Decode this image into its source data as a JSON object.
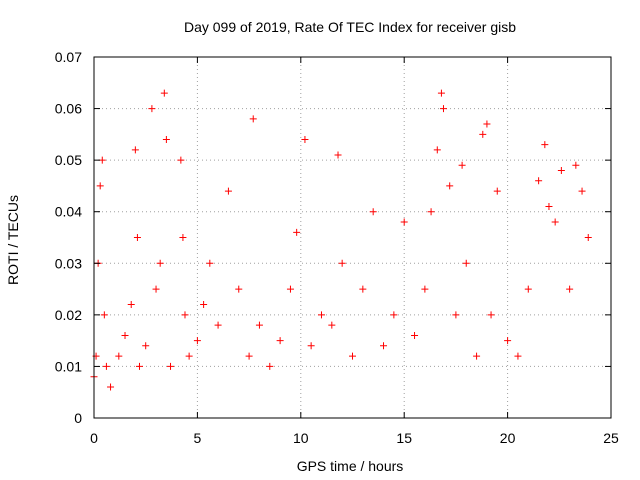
{
  "chart_data": {
    "type": "scatter",
    "title": "Day 099 of 2019, Rate Of TEC Index for receiver gisb",
    "xlabel": "GPS time / hours",
    "ylabel": "ROTI / TECUs",
    "xlim": [
      0,
      25
    ],
    "ylim": [
      0,
      0.07
    ],
    "xticks": [
      0,
      5,
      10,
      15,
      20,
      25
    ],
    "xtick_labels": [
      "0",
      "5",
      "10",
      "15",
      "20",
      "25"
    ],
    "yticks": [
      0,
      0.01,
      0.02,
      0.03,
      0.04,
      0.05,
      0.06,
      0.07
    ],
    "ytick_labels": [
      "0",
      "0.01",
      "0.02",
      "0.03",
      "0.04",
      "0.05",
      "0.06",
      "0.07"
    ],
    "grid": true,
    "marker": "+",
    "color": "#ff0000",
    "series": [
      {
        "name": "ROTI",
        "x": [
          0.0,
          0.1,
          0.2,
          0.3,
          0.4,
          0.5,
          0.6,
          0.8,
          1.2,
          1.5,
          1.8,
          2.0,
          2.1,
          2.2,
          2.5,
          2.8,
          3.0,
          3.2,
          3.4,
          3.5,
          3.7,
          4.2,
          4.3,
          4.4,
          4.6,
          5.0,
          5.3,
          5.6,
          6.0,
          6.5,
          7.0,
          7.5,
          7.7,
          8.0,
          8.5,
          9.0,
          9.5,
          9.8,
          10.2,
          10.5,
          11.0,
          11.5,
          11.8,
          12.0,
          12.5,
          13.0,
          13.5,
          14.0,
          14.5,
          15.0,
          15.5,
          16.0,
          16.3,
          16.6,
          16.8,
          16.9,
          17.2,
          17.5,
          17.8,
          18.0,
          18.5,
          18.8,
          19.0,
          19.2,
          19.5,
          20.0,
          20.5,
          21.0,
          21.5,
          21.8,
          22.0,
          22.3,
          22.6,
          23.0,
          23.3,
          23.6,
          23.9
        ],
        "y": [
          0.008,
          0.012,
          0.03,
          0.045,
          0.05,
          0.02,
          0.01,
          0.006,
          0.012,
          0.016,
          0.022,
          0.052,
          0.035,
          0.01,
          0.014,
          0.06,
          0.025,
          0.03,
          0.063,
          0.054,
          0.01,
          0.05,
          0.035,
          0.02,
          0.012,
          0.015,
          0.022,
          0.03,
          0.018,
          0.044,
          0.025,
          0.012,
          0.058,
          0.018,
          0.01,
          0.015,
          0.025,
          0.036,
          0.054,
          0.014,
          0.02,
          0.018,
          0.051,
          0.03,
          0.012,
          0.025,
          0.04,
          0.014,
          0.02,
          0.038,
          0.016,
          0.025,
          0.04,
          0.052,
          0.063,
          0.06,
          0.045,
          0.02,
          0.049,
          0.03,
          0.012,
          0.055,
          0.057,
          0.02,
          0.044,
          0.015,
          0.012,
          0.025,
          0.046,
          0.053,
          0.041,
          0.038,
          0.048,
          0.025,
          0.049,
          0.044,
          0.035
        ]
      }
    ]
  }
}
